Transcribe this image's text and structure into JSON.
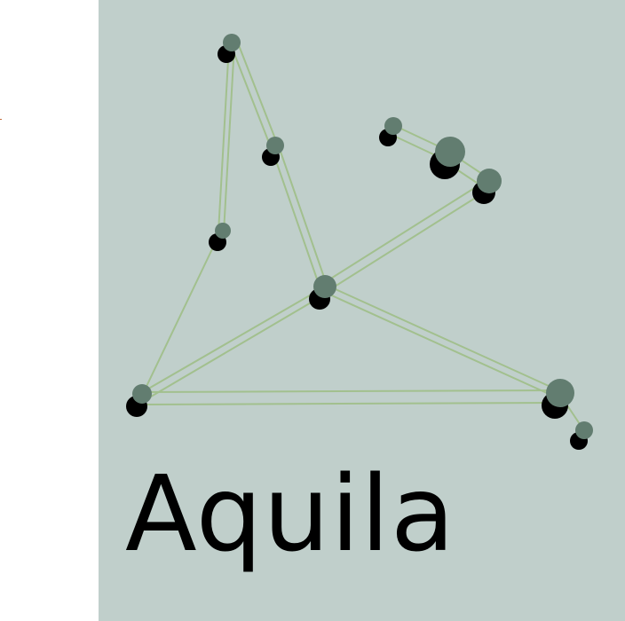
{
  "title": "Aquila",
  "colors": {
    "panel": "#c0cfcb",
    "line": "#a2c08e",
    "star": "#627d70",
    "shadow": "#000000",
    "text": "#000000"
  },
  "stars": [
    {
      "name": "star-1",
      "mag": "small"
    },
    {
      "name": "star-2",
      "mag": "small"
    },
    {
      "name": "star-3",
      "mag": "small"
    },
    {
      "name": "star-4",
      "mag": "medium"
    },
    {
      "name": "star-5",
      "mag": "small"
    },
    {
      "name": "star-6",
      "mag": "small"
    },
    {
      "name": "star-7",
      "mag": "large"
    },
    {
      "name": "star-8",
      "mag": "medium"
    },
    {
      "name": "star-9",
      "mag": "medium"
    },
    {
      "name": "star-10",
      "mag": "small"
    }
  ]
}
